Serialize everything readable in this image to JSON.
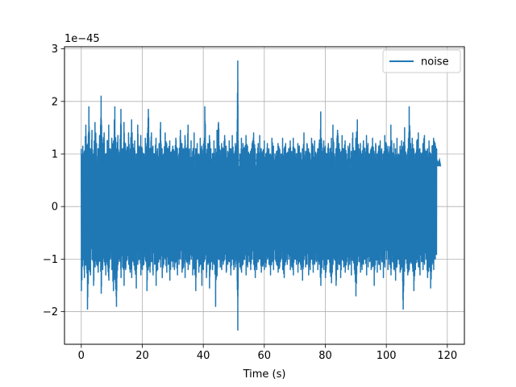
{
  "chart_data": {
    "type": "line",
    "title": "",
    "xlabel": "Time (s)",
    "ylabel": "",
    "y_offset_label": "1e−45",
    "xlim": [
      -5.5,
      125.6
    ],
    "ylim": [
      -2.62,
      3.04
    ],
    "xticks": [
      0,
      20,
      40,
      60,
      80,
      100,
      120
    ],
    "xtick_labels": [
      "0",
      "20",
      "40",
      "60",
      "80",
      "100",
      "120"
    ],
    "yticks": [
      -2,
      -1,
      0,
      1,
      2,
      3
    ],
    "ytick_labels": [
      "−2",
      "−1",
      "0",
      "1",
      "2",
      "3"
    ],
    "grid": true,
    "legend_position": "top-right",
    "legend_entries": [
      "noise"
    ],
    "series": [
      {
        "name": "noise",
        "color": "#1f77b4",
        "x_start": 0,
        "x_end": 120,
        "description_peaks": {
          "max": {
            "x": 51.3,
            "y": 2.77
          },
          "min": {
            "x": 51.3,
            "y": -2.35
          }
        },
        "x": [
          0,
          0.5,
          1.0,
          1.5,
          2.0,
          2.5,
          3.0,
          3.5,
          4.0,
          4.5,
          5.0,
          5.5,
          6.0,
          6.5,
          7.0,
          7.5,
          8.0,
          8.5,
          9.0,
          9.5,
          10.0,
          10.5,
          11.0,
          11.5,
          12.0,
          12.5,
          13.0,
          13.5,
          14.0,
          14.5,
          15.0,
          15.5,
          16.0,
          16.5,
          17.0,
          17.5,
          18.0,
          18.5,
          19.0,
          19.5,
          20.0,
          20.5,
          21.0,
          21.5,
          22.0,
          22.5,
          23.0,
          23.5,
          24.0,
          24.5,
          25.0,
          25.5,
          26.0,
          26.5,
          27.0,
          27.5,
          28.0,
          28.5,
          29.0,
          29.5,
          30.0,
          30.5,
          31.0,
          31.5,
          32.0,
          32.5,
          33.0,
          33.5,
          34.0,
          34.5,
          35.0,
          35.5,
          36.0,
          36.5,
          37.0,
          37.5,
          38.0,
          38.5,
          39.0,
          39.5,
          40.0,
          40.5,
          41.0,
          41.5,
          42.0,
          42.5,
          43.0,
          43.5,
          44.0,
          44.5,
          45.0,
          45.5,
          46.0,
          46.5,
          47.0,
          47.5,
          48.0,
          48.5,
          49.0,
          49.5,
          50.0,
          50.5,
          51.0,
          51.3,
          51.5,
          52.0,
          52.5,
          53.0,
          53.5,
          54.0,
          54.5,
          55.0,
          55.5,
          56.0,
          56.5,
          57.0,
          57.5,
          58.0,
          58.5,
          59.0,
          59.5,
          60.0,
          60.5,
          61.0,
          61.5,
          62.0,
          62.5,
          63.0,
          63.5,
          64.0,
          64.5,
          65.0,
          65.5,
          66.0,
          66.5,
          67.0,
          67.5,
          68.0,
          68.5,
          69.0,
          69.5,
          70.0,
          70.5,
          71.0,
          71.5,
          72.0,
          72.5,
          73.0,
          73.5,
          74.0,
          74.5,
          75.0,
          75.5,
          76.0,
          76.5,
          77.0,
          77.5,
          78.0,
          78.5,
          79.0,
          79.5,
          80.0,
          80.5,
          81.0,
          81.5,
          82.0,
          82.5,
          83.0,
          83.5,
          84.0,
          84.5,
          85.0,
          85.5,
          86.0,
          86.5,
          87.0,
          87.5,
          88.0,
          88.5,
          89.0,
          89.5,
          90.0,
          90.5,
          91.0,
          91.5,
          92.0,
          92.5,
          93.0,
          93.5,
          94.0,
          94.5,
          95.0,
          95.5,
          96.0,
          96.5,
          97.0,
          97.5,
          98.0,
          98.5,
          99.0,
          99.5,
          100.0,
          100.5,
          101.0,
          101.5,
          102.0,
          102.5,
          103.0,
          103.5,
          104.0,
          104.5,
          105.0,
          105.5,
          106.0,
          106.5,
          107.0,
          107.5,
          108.0,
          108.5,
          109.0,
          109.5,
          110.0,
          110.5,
          111.0,
          111.5,
          112.0,
          112.5,
          113.0,
          113.5,
          114.0,
          114.5,
          115.0,
          115.5,
          116.0,
          116.5,
          117.0,
          117.5,
          118.0,
          118.5,
          119.0,
          119.5,
          120.0
        ],
        "max_y": [
          1.1,
          1.15,
          1.05,
          1.55,
          1.0,
          1.9,
          1.1,
          1.45,
          1.0,
          1.6,
          1.2,
          1.1,
          1.35,
          2.1,
          1.2,
          1.4,
          1.0,
          1.25,
          1.55,
          1.1,
          1.3,
          1.2,
          1.9,
          1.1,
          1.35,
          1.0,
          1.85,
          1.1,
          1.6,
          1.2,
          1.1,
          1.4,
          1.0,
          1.65,
          1.1,
          1.25,
          1.0,
          1.55,
          1.15,
          1.35,
          1.1,
          1.0,
          1.3,
          1.2,
          1.85,
          1.1,
          1.4,
          1.15,
          1.0,
          1.3,
          1.1,
          1.2,
          1.6,
          1.1,
          1.0,
          1.4,
          1.2,
          1.1,
          1.25,
          1.0,
          1.15,
          1.05,
          1.3,
          1.1,
          1.0,
          1.45,
          1.2,
          1.1,
          1.35,
          1.0,
          1.55,
          1.1,
          1.25,
          1.05,
          1.4,
          1.1,
          1.2,
          1.0,
          1.3,
          1.15,
          1.1,
          1.9,
          1.0,
          1.2,
          1.35,
          1.1,
          1.0,
          1.25,
          1.1,
          1.45,
          1.6,
          1.0,
          1.2,
          1.1,
          1.35,
          1.15,
          1.05,
          1.25,
          1.1,
          1.35,
          1.0,
          1.2,
          1.2,
          2.77,
          1.1,
          1.0,
          1.3,
          1.2,
          1.1,
          1.35,
          1.15,
          1.0,
          1.05,
          1.2,
          1.4,
          1.1,
          1.0,
          1.2,
          1.35,
          1.1,
          1.05,
          1.25,
          1.0,
          1.2,
          1.1,
          1.0,
          1.3,
          1.15,
          1.0,
          1.05,
          1.2,
          1.1,
          1.0,
          1.3,
          1.1,
          1.2,
          1.0,
          1.1,
          1.25,
          1.05,
          1.3,
          1.1,
          1.0,
          1.2,
          1.15,
          1.0,
          1.1,
          1.4,
          1.05,
          1.2,
          1.1,
          1.0,
          1.3,
          1.15,
          1.25,
          1.0,
          1.1,
          1.2,
          1.8,
          1.05,
          1.25,
          1.15,
          1.0,
          1.2,
          1.1,
          1.3,
          1.55,
          1.0,
          1.1,
          1.45,
          1.2,
          1.0,
          1.35,
          1.1,
          1.25,
          1.0,
          1.15,
          1.2,
          1.05,
          1.4,
          1.0,
          1.3,
          1.65,
          1.1,
          1.2,
          1.0,
          1.25,
          1.1,
          1.35,
          1.2,
          1.0,
          1.1,
          1.3,
          1.05,
          1.2,
          1.0,
          1.15,
          1.25,
          1.1,
          1.0,
          1.35,
          1.2,
          1.15,
          1.05,
          1.55,
          1.0,
          1.2,
          1.1,
          1.3,
          1.0,
          1.15,
          1.25,
          1.1,
          1.5,
          1.0,
          1.05,
          1.9,
          1.2,
          1.3,
          1.1,
          1.0,
          1.25,
          1.4,
          1.1,
          1.0,
          1.2,
          1.35,
          1.05,
          1.1,
          1.25,
          1.0,
          1.15,
          1.3,
          1.2,
          1.1,
          1.0,
          1.1,
          0.9
        ],
        "min_y": [
          -1.6,
          -1.0,
          -1.35,
          -1.1,
          -1.95,
          -1.2,
          -1.3,
          -1.0,
          -1.5,
          -1.15,
          -1.1,
          -1.25,
          -1.0,
          -1.65,
          -1.2,
          -1.05,
          -1.3,
          -1.1,
          -1.4,
          -1.0,
          -1.2,
          -1.6,
          -1.25,
          -1.9,
          -1.1,
          -1.0,
          -1.35,
          -1.15,
          -1.5,
          -1.2,
          -1.0,
          -1.1,
          -1.25,
          -1.35,
          -1.05,
          -1.2,
          -1.55,
          -1.1,
          -1.0,
          -1.3,
          -1.2,
          -1.1,
          -1.0,
          -1.6,
          -1.15,
          -1.25,
          -1.05,
          -1.3,
          -1.1,
          -1.5,
          -1.2,
          -1.0,
          -1.15,
          -1.35,
          -1.1,
          -1.0,
          -1.25,
          -1.1,
          -1.4,
          -1.0,
          -1.15,
          -1.2,
          -1.05,
          -1.3,
          -1.1,
          -1.0,
          -1.25,
          -1.15,
          -1.35,
          -1.05,
          -1.2,
          -1.1,
          -1.0,
          -1.3,
          -1.15,
          -1.6,
          -1.0,
          -1.25,
          -1.1,
          -1.5,
          -1.2,
          -1.0,
          -1.35,
          -1.1,
          -1.55,
          -1.05,
          -1.2,
          -1.1,
          -1.9,
          -1.3,
          -1.0,
          -1.15,
          -1.2,
          -1.1,
          -1.0,
          -1.25,
          -1.1,
          -1.05,
          -1.3,
          -1.0,
          -1.2,
          -1.15,
          -1.1,
          -2.35,
          -1.0,
          -1.15,
          -1.25,
          -1.1,
          -1.0,
          -1.3,
          -1.15,
          -1.05,
          -1.2,
          -1.0,
          -1.1,
          -1.35,
          -1.2,
          -1.05,
          -1.0,
          -1.25,
          -1.1,
          -1.2,
          -1.15,
          -1.0,
          -1.1,
          -1.3,
          -1.05,
          -1.2,
          -1.0,
          -1.1,
          -1.25,
          -1.15,
          -1.0,
          -1.2,
          -1.35,
          -1.05,
          -1.1,
          -1.0,
          -1.2,
          -1.15,
          -1.3,
          -1.0,
          -1.1,
          -1.25,
          -1.05,
          -1.2,
          -1.4,
          -1.0,
          -1.15,
          -1.1,
          -1.3,
          -1.2,
          -1.0,
          -1.25,
          -1.1,
          -1.05,
          -1.2,
          -1.1,
          -1.5,
          -1.0,
          -1.2,
          -1.35,
          -1.1,
          -1.0,
          -1.25,
          -1.45,
          -1.1,
          -1.0,
          -1.5,
          -1.2,
          -1.1,
          -1.35,
          -1.0,
          -1.15,
          -1.25,
          -1.05,
          -1.2,
          -1.1,
          -1.3,
          -1.0,
          -1.2,
          -1.7,
          -1.1,
          -1.05,
          -1.25,
          -1.2,
          -1.1,
          -1.0,
          -1.3,
          -1.15,
          -1.05,
          -1.2,
          -1.1,
          -1.5,
          -1.0,
          -1.25,
          -1.1,
          -1.2,
          -1.05,
          -1.35,
          -1.15,
          -1.0,
          -1.2,
          -1.1,
          -1.3,
          -1.05,
          -1.2,
          -1.4,
          -1.1,
          -1.0,
          -1.25,
          -1.15,
          -1.95,
          -1.1,
          -1.0,
          -1.3,
          -1.2,
          -1.05,
          -1.1,
          -1.6,
          -1.2,
          -1.0,
          -1.15,
          -1.3,
          -1.05,
          -1.2,
          -1.1,
          -1.0,
          -1.35,
          -1.15,
          -1.55,
          -1.1,
          -1.2,
          -1.0,
          -0.9
        ]
      }
    ]
  }
}
